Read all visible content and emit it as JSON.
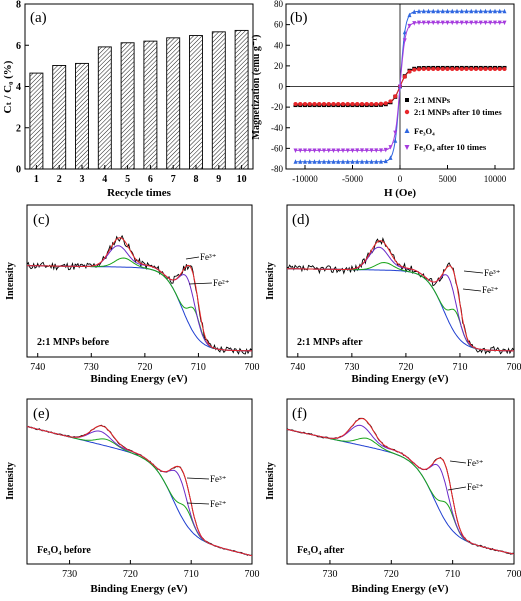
{
  "panels": {
    "a": {
      "label": "(a)",
      "type": "bar",
      "categories": [
        "1",
        "2",
        "3",
        "4",
        "5",
        "6",
        "7",
        "8",
        "9",
        "10"
      ],
      "values": [
        4.65,
        5.02,
        5.12,
        5.92,
        6.12,
        6.2,
        6.36,
        6.47,
        6.65,
        6.72
      ],
      "xlabel": "Recycle times",
      "ylabel": "Cₜ / C₀ (%)",
      "ylim": [
        0,
        8
      ],
      "yticks": [
        "0",
        "2",
        "4",
        "6",
        "8"
      ]
    },
    "b": {
      "label": "(b)",
      "type": "scatter",
      "xlabel": "H (Oe)",
      "ylabel": "Magnetization (emu g⁻¹)",
      "xlim": [
        -12000,
        12000
      ],
      "ylim": [
        -80,
        80
      ],
      "xticks": [
        "-10000",
        "-5000",
        "0",
        "5000",
        "10000"
      ],
      "yticks": [
        "-80",
        "-60",
        "-40",
        "-20",
        "0",
        "20",
        "40",
        "60",
        "80"
      ],
      "legend": [
        "2:1 MNPs",
        "2:1 MNPs after 10 times",
        "Fe₃O₄",
        "Fe₃O₄ after 10 times"
      ],
      "colors": [
        "#000000",
        "#e8262a",
        "#2f66e0",
        "#a63cde"
      ],
      "ms": [
        18,
        17,
        73,
        62
      ]
    },
    "c": {
      "label": "(c)",
      "note": "2:1 MNPs before",
      "xticks": [
        "740",
        "730",
        "720",
        "710",
        "700"
      ],
      "xlabel": "Binding Energy (eV)",
      "ylabel": "Intensity",
      "fe3": "Fe³⁺",
      "fe2": "Fe²⁺"
    },
    "d": {
      "label": "(d)",
      "note": "2:1 MNPs after",
      "xticks": [
        "740",
        "730",
        "720",
        "710",
        "700"
      ],
      "xlabel": "Binding Energy (eV)",
      "ylabel": "Intensity",
      "fe3": "Fe³⁺",
      "fe2": "Fe²⁺"
    },
    "e": {
      "label": "(e)",
      "note": "Fe₃O₄ before",
      "xticks": [
        "730",
        "720",
        "710",
        "700"
      ],
      "xlabel": "Binding Energy (eV)",
      "ylabel": "Intensity",
      "fe3": "Fe³⁺",
      "fe2": "Fe²⁺"
    },
    "f": {
      "label": "(f)",
      "note": "Fe₃O₄ after",
      "xticks": [
        "730",
        "720",
        "710",
        "700"
      ],
      "xlabel": "Binding Energy (eV)",
      "ylabel": "Intensity",
      "fe3": "Fe³⁺",
      "fe2": "Fe²⁺"
    }
  },
  "chart_data": [
    {
      "type": "bar",
      "categories": [
        "1",
        "2",
        "3",
        "4",
        "5",
        "6",
        "7",
        "8",
        "9",
        "10"
      ],
      "values": [
        4.65,
        5.02,
        5.12,
        5.92,
        6.12,
        6.2,
        6.36,
        6.47,
        6.65,
        6.72
      ],
      "xlabel": "Recycle times",
      "ylabel": "Cₜ / C₀ (%)",
      "ylim": [
        0,
        8
      ]
    },
    {
      "type": "scatter",
      "xlabel": "H (Oe)",
      "ylabel": "Magnetization (emu g⁻¹)",
      "xlim": [
        -12000,
        12000
      ],
      "ylim": [
        -80,
        80
      ],
      "series": [
        {
          "name": "2:1 MNPs",
          "saturation": 18
        },
        {
          "name": "2:1 MNPs after 10 times",
          "saturation": 17
        },
        {
          "name": "Fe₃O₄",
          "saturation": 73
        },
        {
          "name": "Fe₃O₄ after 10 times",
          "saturation": 62
        }
      ]
    },
    {
      "type": "line",
      "xlabel": "Binding Energy (eV)",
      "ylabel": "Intensity",
      "xlim": [
        742,
        700
      ]
    },
    {
      "type": "line",
      "xlabel": "Binding Energy (eV)",
      "ylabel": "Intensity",
      "xlim": [
        742,
        700
      ]
    },
    {
      "type": "line",
      "xlabel": "Binding Energy (eV)",
      "ylabel": "Intensity",
      "xlim": [
        737,
        700
      ]
    },
    {
      "type": "line",
      "xlabel": "Binding Energy (eV)",
      "ylabel": "Intensity",
      "xlim": [
        737,
        700
      ]
    }
  ]
}
